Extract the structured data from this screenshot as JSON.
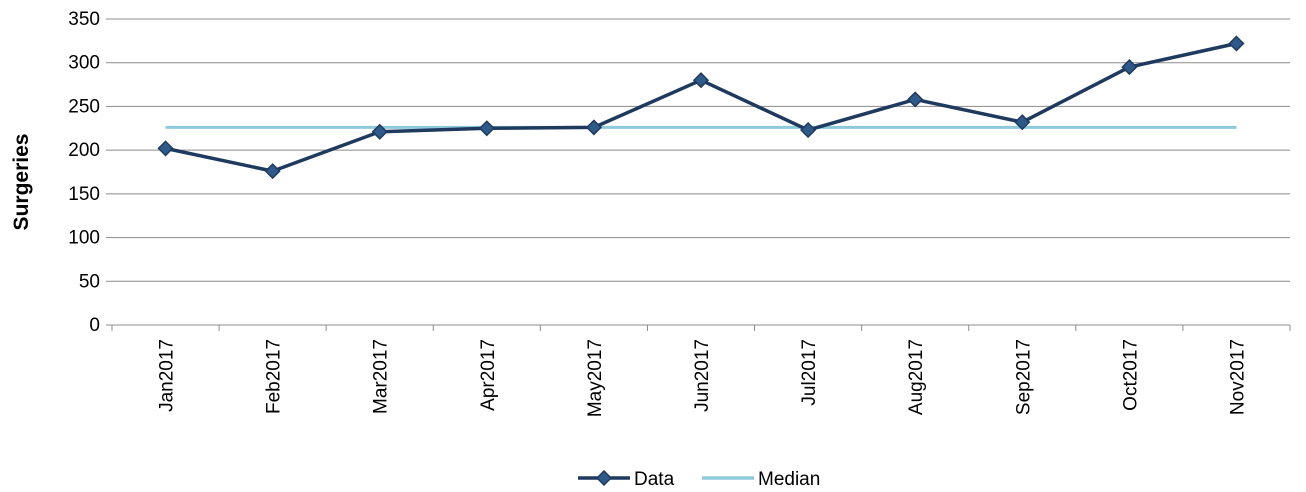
{
  "chart_data": {
    "type": "line",
    "title": "",
    "xlabel": "",
    "ylabel": "Surgeries",
    "categories": [
      "Jan2017",
      "Feb2017",
      "Mar2017",
      "Apr2017",
      "May2017",
      "Jun2017",
      "Jul2017",
      "Aug2017",
      "Sep2017",
      "Oct2017",
      "Nov2017"
    ],
    "ylim": [
      0,
      350
    ],
    "yticks": [
      0,
      50,
      100,
      150,
      200,
      250,
      300,
      350
    ],
    "grid": true,
    "legend_position": "bottom",
    "series": [
      {
        "name": "Data",
        "values": [
          202,
          176,
          221,
          225,
          226,
          280,
          223,
          258,
          232,
          295,
          322
        ],
        "color": "#1F3A5F",
        "marker": "diamond"
      },
      {
        "name": "Median",
        "values": [
          226,
          226,
          226,
          226,
          226,
          226,
          226,
          226,
          226,
          226,
          226
        ],
        "color": "#8FCADB",
        "marker": "none"
      }
    ]
  }
}
